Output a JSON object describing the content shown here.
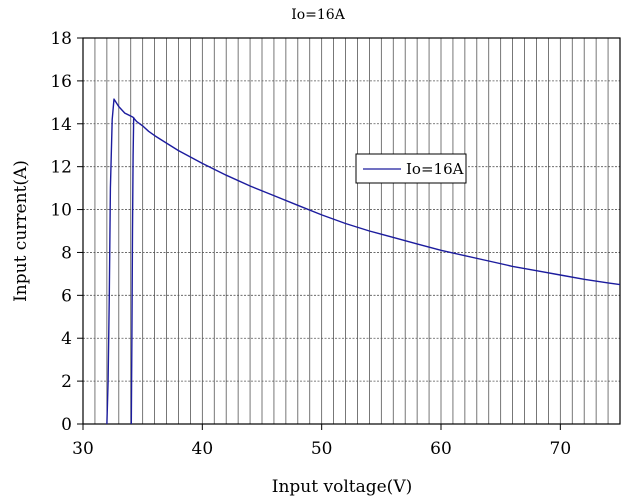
{
  "chart_data": {
    "type": "line",
    "title": "Io=16A",
    "xlabel": "Input voltage(V)",
    "ylabel": "Input current(A)",
    "xlim": [
      30,
      75
    ],
    "ylim": [
      0,
      18
    ],
    "x_ticks": [
      30,
      40,
      50,
      60,
      70
    ],
    "y_ticks": [
      0,
      2,
      4,
      6,
      8,
      10,
      12,
      14,
      16,
      18
    ],
    "grid": {
      "vertical": true,
      "horizontal": true,
      "vertical_step": 1,
      "horizontal_step": 2
    },
    "legend": {
      "position": "right-center"
    },
    "series": [
      {
        "name": "Io=16A",
        "color": "#1c1c9e",
        "points": [
          [
            32.0,
            0.0
          ],
          [
            32.1,
            2.0
          ],
          [
            32.2,
            6.0
          ],
          [
            32.3,
            11.0
          ],
          [
            32.45,
            14.2
          ],
          [
            32.6,
            15.15
          ],
          [
            33.0,
            14.8
          ],
          [
            33.5,
            14.5
          ],
          [
            34.2,
            14.3
          ],
          [
            34.5,
            14.1
          ],
          [
            35.0,
            13.9
          ],
          [
            35.5,
            13.65
          ],
          [
            36.0,
            13.45
          ],
          [
            37.0,
            13.1
          ],
          [
            38.0,
            12.75
          ],
          [
            39.0,
            12.45
          ],
          [
            40.0,
            12.15
          ],
          [
            42.0,
            11.6
          ],
          [
            44.0,
            11.1
          ],
          [
            46.0,
            10.65
          ],
          [
            48.0,
            10.2
          ],
          [
            50.0,
            9.75
          ],
          [
            52.0,
            9.35
          ],
          [
            54.0,
            9.0
          ],
          [
            56.0,
            8.7
          ],
          [
            58.0,
            8.4
          ],
          [
            60.0,
            8.1
          ],
          [
            62.0,
            7.85
          ],
          [
            64.0,
            7.6
          ],
          [
            66.0,
            7.35
          ],
          [
            68.0,
            7.15
          ],
          [
            70.0,
            6.95
          ],
          [
            72.0,
            6.75
          ],
          [
            74.0,
            6.58
          ],
          [
            75.0,
            6.5
          ]
        ],
        "secondary_branch": [
          [
            34.05,
            0.0
          ],
          [
            34.1,
            4.0
          ],
          [
            34.15,
            9.0
          ],
          [
            34.2,
            12.5
          ],
          [
            34.25,
            14.3
          ]
        ]
      }
    ]
  }
}
